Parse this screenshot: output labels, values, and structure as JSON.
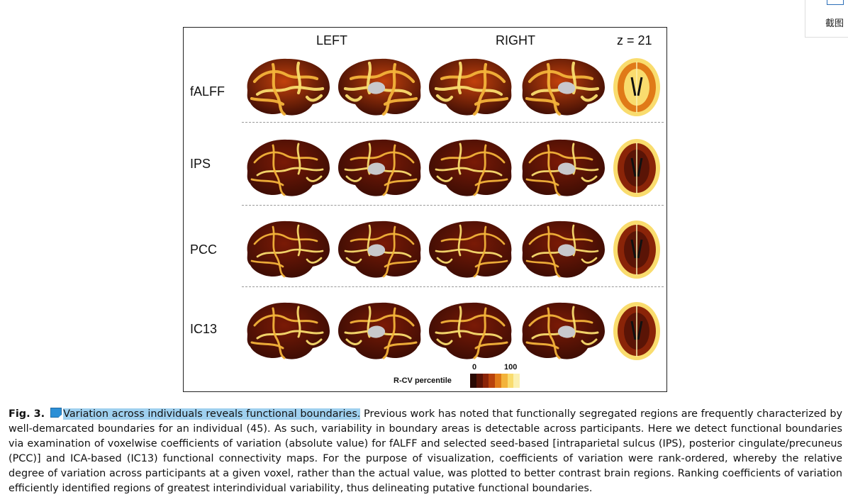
{
  "corner_panel": {
    "label": "截图"
  },
  "figure": {
    "column_headers": [
      "LEFT",
      "RIGHT",
      "z = 21"
    ],
    "row_labels": [
      "fALFF",
      "IPS",
      "PCC",
      "IC13"
    ],
    "colorbar": {
      "min_label": "0",
      "max_label": "100",
      "title": "R-CV percentile",
      "colors": [
        "#2a0a04",
        "#5a1406",
        "#8a2408",
        "#b8420c",
        "#e07a18",
        "#f3b33a",
        "#f9dc6e",
        "#fbf0b0"
      ]
    }
  },
  "caption": {
    "fig_label": "Fig. 3.",
    "highlighted_title": "Variation across individuals reveals functional boundaries.",
    "body": "Previous work has noted that functionally segregated regions are frequently characterized by well-demarcated boundaries for an individual (45). As such, variability in boundary areas is detectable across participants. Here we detect functional boundaries via examination of voxelwise coefficients of variation (absolute value) for fALFF and selected seed-based [intraparietal sulcus (IPS), posterior cingulate/precuneus (PCC)] and ICA-based (IC13) functional connectivity maps. For the purpose of visualization, coefficients of variation were rank-ordered, whereby the relative degree of variation across participants at a given voxel, rather than the actual value, was plotted to better contrast brain regions. Ranking coefficients of variation efficiently identified regions of greatest interindividual variability, thus delineating putative functional boundaries."
  }
}
